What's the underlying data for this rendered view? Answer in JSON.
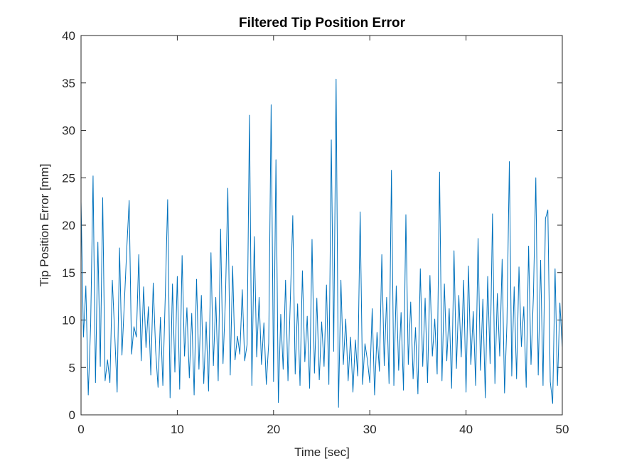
{
  "chart_data": {
    "type": "line",
    "title": "Filtered Tip Position Error",
    "xlabel": "Time [sec]",
    "ylabel": "Tip Position Error [mm]",
    "xlim": [
      0,
      50
    ],
    "ylim": [
      0,
      40
    ],
    "xticks": [
      0,
      10,
      20,
      30,
      40,
      50
    ],
    "yticks": [
      0,
      5,
      10,
      15,
      20,
      25,
      30,
      35,
      40
    ],
    "grid": false,
    "series": [
      {
        "color": "#0072BD",
        "x": [
          0,
          0.25,
          0.5,
          0.75,
          1,
          1.25,
          1.5,
          1.75,
          2,
          2.25,
          2.5,
          2.75,
          3,
          3.25,
          3.5,
          3.75,
          4,
          4.25,
          4.5,
          4.75,
          5,
          5.25,
          5.5,
          5.75,
          6,
          6.25,
          6.5,
          6.75,
          7,
          7.25,
          7.5,
          7.75,
          8,
          8.25,
          8.5,
          8.75,
          9,
          9.25,
          9.5,
          9.75,
          10,
          10.25,
          10.5,
          10.75,
          11,
          11.25,
          11.5,
          11.75,
          12,
          12.25,
          12.5,
          12.75,
          13,
          13.25,
          13.5,
          13.75,
          14,
          14.25,
          14.5,
          14.75,
          15,
          15.25,
          15.5,
          15.75,
          16,
          16.25,
          16.5,
          16.75,
          17,
          17.25,
          17.5,
          17.75,
          18,
          18.25,
          18.5,
          18.75,
          19,
          19.25,
          19.5,
          19.75,
          20,
          20.25,
          20.5,
          20.75,
          21,
          21.25,
          21.5,
          21.75,
          22,
          22.25,
          22.5,
          22.75,
          23,
          23.25,
          23.5,
          23.75,
          24,
          24.25,
          24.5,
          24.75,
          25,
          25.25,
          25.5,
          25.75,
          26,
          26.25,
          26.5,
          26.75,
          27,
          27.25,
          27.5,
          27.75,
          28,
          28.25,
          28.5,
          28.75,
          29,
          29.25,
          29.5,
          29.75,
          30,
          30.25,
          30.5,
          30.75,
          31,
          31.25,
          31.5,
          31.75,
          32,
          32.25,
          32.5,
          32.75,
          33,
          33.25,
          33.5,
          33.75,
          34,
          34.25,
          34.5,
          34.75,
          35,
          35.25,
          35.5,
          35.75,
          36,
          36.25,
          36.5,
          36.75,
          37,
          37.25,
          37.5,
          37.75,
          38,
          38.25,
          38.5,
          38.75,
          39,
          39.25,
          39.5,
          39.75,
          40,
          40.25,
          40.5,
          40.75,
          41,
          41.25,
          41.5,
          41.75,
          42,
          42.25,
          42.5,
          42.75,
          43,
          43.25,
          43.5,
          43.75,
          44,
          44.25,
          44.5,
          44.75,
          45,
          45.25,
          45.5,
          45.75,
          46,
          46.25,
          46.5,
          46.75,
          47,
          47.25,
          47.5,
          47.75,
          48,
          48.25,
          48.5,
          48.75,
          49,
          49.25,
          49.5,
          49.75,
          50
        ],
        "values": [
          22.5,
          8.2,
          13.6,
          2.1,
          9.5,
          25.2,
          3.4,
          18.2,
          5.1,
          22.9,
          3.6,
          5.8,
          3.4,
          14.2,
          8.5,
          2.4,
          17.6,
          6.3,
          11.8,
          17.5,
          22.6,
          6.4,
          9.3,
          8.2,
          16.9,
          5.7,
          13.5,
          7.1,
          11.4,
          4.2,
          13.9,
          6.8,
          2.9,
          10.3,
          3.1,
          12.5,
          22.7,
          1.8,
          13.8,
          4.5,
          14.6,
          2.7,
          16.8,
          6.2,
          11.3,
          3.9,
          10.7,
          2.1,
          14.3,
          4.8,
          12.6,
          3.3,
          9.8,
          2.5,
          17.1,
          5.2,
          12.4,
          3.6,
          19.6,
          5.4,
          12.1,
          23.9,
          4.2,
          15.7,
          5.8,
          8.3,
          6.4,
          13.2,
          5.7,
          7.4,
          31.6,
          3.1,
          18.8,
          6.1,
          12.4,
          5.3,
          9.7,
          3.2,
          7.6,
          32.7,
          3.5,
          26.9,
          1.3,
          10.6,
          4.8,
          14.2,
          3.6,
          12.3,
          21,
          4.3,
          11.7,
          3.1,
          15.2,
          5.6,
          10.4,
          2.8,
          18.5,
          4.4,
          12.3,
          3.7,
          9.8,
          5.1,
          13.7,
          3.2,
          29,
          6.7,
          35.4,
          0.8,
          14.2,
          5.3,
          10.1,
          3.6,
          8.2,
          2.4,
          7.9,
          4.1,
          21.4,
          3.2,
          7.5,
          5.8,
          3.4,
          11.2,
          2.1,
          8.7,
          4.6,
          16.9,
          5.2,
          12.4,
          3.3,
          25.8,
          3.1,
          13.6,
          4.7,
          10.8,
          2.6,
          21.1,
          5.3,
          11.9,
          3.8,
          9.2,
          2.2,
          15.4,
          5.1,
          12.3,
          3.4,
          14.7,
          6.2,
          10.1,
          4.3,
          25.6,
          3.6,
          13.8,
          5.7,
          11.2,
          2.8,
          17.3,
          4.9,
          12.6,
          6.1,
          14.2,
          2.4,
          15.7,
          5.3,
          10.9,
          3.1,
          18.6,
          4.7,
          12.2,
          1.8,
          14.6,
          5.4,
          21.2,
          3.3,
          12.8,
          6.2,
          16.4,
          2.3,
          9.7,
          26.7,
          4.1,
          13.5,
          3.8,
          15.6,
          7.2,
          11.4,
          2.9,
          17.8,
          5.3,
          12.6,
          25,
          4.2,
          16.3,
          3.1,
          20.7,
          21.6,
          3.5,
          1.2,
          15.4,
          3.1,
          11.8,
          7.1
        ]
      }
    ]
  }
}
